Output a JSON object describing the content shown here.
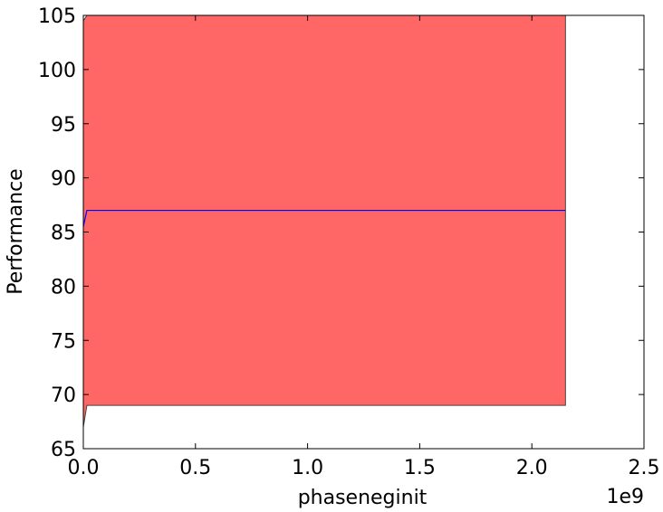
{
  "chart_data": {
    "type": "line",
    "x_label": "phaseneginit",
    "y_label": "Performance",
    "x_offset": "1e9",
    "x": [
      0,
      16000000,
      2150000000
    ],
    "mean": {
      "color": "#0000ff",
      "values": [
        85.5,
        87,
        87
      ]
    },
    "band": {
      "color": "#ff6666",
      "edge": "#444444",
      "lower": [
        67,
        69,
        69
      ],
      "upper": [
        104.5,
        105,
        105
      ]
    },
    "xlim": [
      0,
      2500000000
    ],
    "xticks": [
      {
        "value": 0,
        "label": "0.0"
      },
      {
        "value": 500000000,
        "label": "0.5"
      },
      {
        "value": 1000000000,
        "label": "1.0"
      },
      {
        "value": 1500000000,
        "label": "1.5"
      },
      {
        "value": 2000000000,
        "label": "2.0"
      },
      {
        "value": 2500000000,
        "label": "2.5"
      }
    ],
    "ylim": [
      65,
      105
    ],
    "yticks": [
      65,
      70,
      75,
      80,
      85,
      90,
      95,
      100,
      105
    ]
  }
}
